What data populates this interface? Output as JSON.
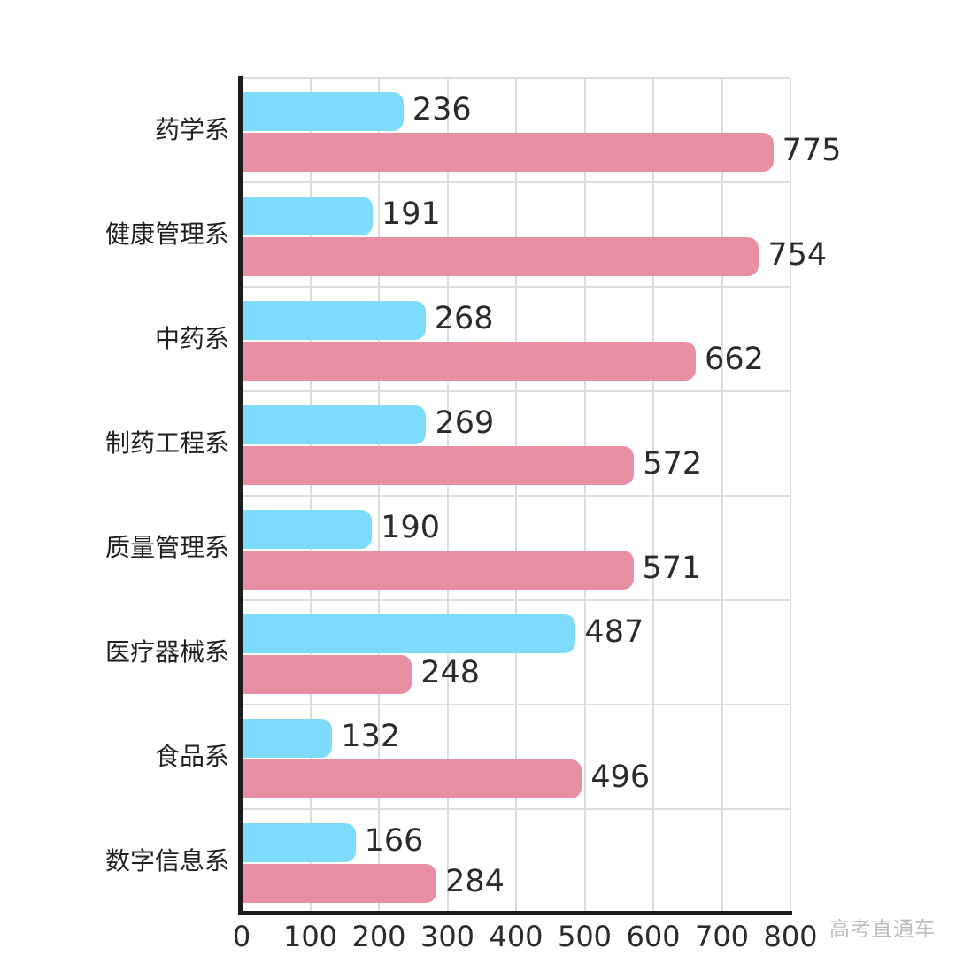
{
  "chart_data": {
    "type": "bar",
    "orientation": "horizontal",
    "title": "",
    "xlabel": "",
    "ylabel": "",
    "xlim": [
      0,
      800
    ],
    "xticks": [
      0,
      100,
      200,
      300,
      400,
      500,
      600,
      700,
      800
    ],
    "grid": true,
    "categories": [
      "药学系",
      "健康管理系",
      "中药系",
      "制药工程系",
      "质量管理系",
      "医疗器械系",
      "食品系",
      "数字信息系"
    ],
    "series": [
      {
        "name": "blue-series",
        "color": "#7EDBFA",
        "values": [
          236,
          191,
          268,
          269,
          190,
          487,
          132,
          166
        ]
      },
      {
        "name": "pink-series",
        "color": "#E890A3",
        "values": [
          775,
          754,
          662,
          572,
          571,
          248,
          496,
          284
        ]
      }
    ],
    "axis_color": "#1c1c1c",
    "gridline_color": "#dcdcdc",
    "value_label_color": "#2b2b2b"
  },
  "watermark": {
    "text": "高考直通车"
  }
}
